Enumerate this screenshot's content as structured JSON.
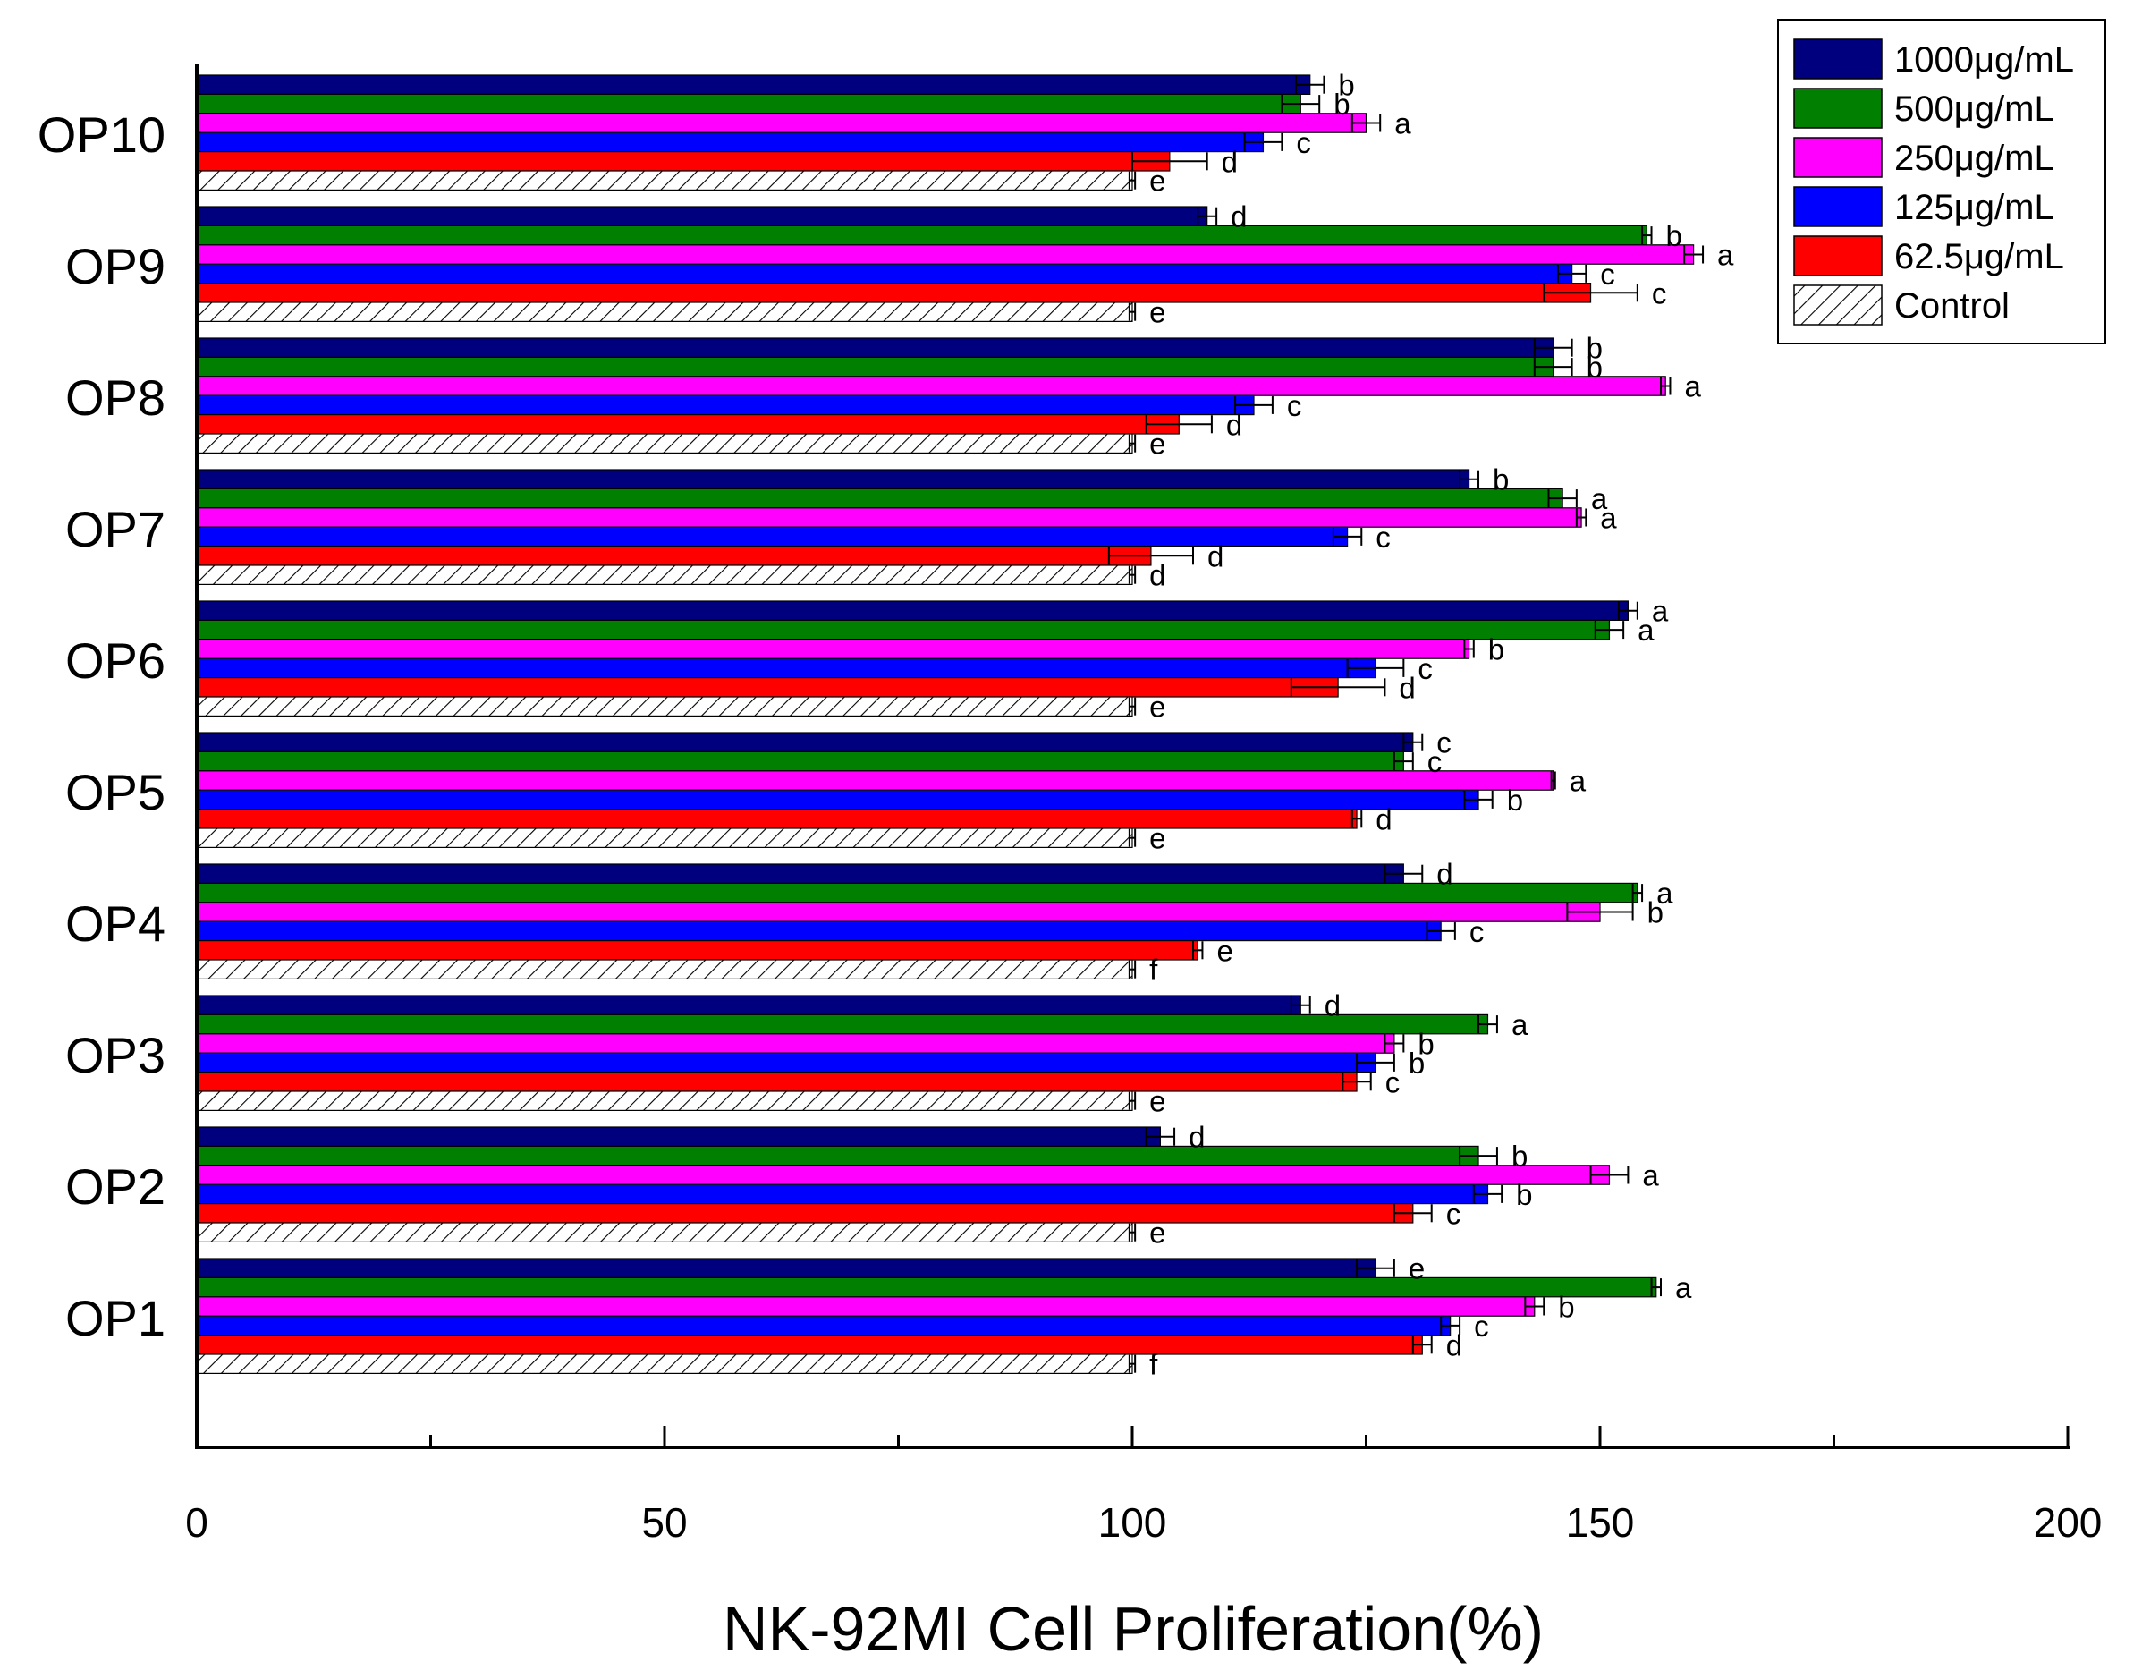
{
  "chart_data": {
    "type": "bar",
    "orientation": "horizontal",
    "xlabel": "NK-92MI Cell Proliferation(%)",
    "ylabel": "",
    "xlim": [
      0,
      200
    ],
    "xticks": [
      0,
      50,
      100,
      150,
      200
    ],
    "x_minor_tick_step": 25,
    "grid": false,
    "legend_position": "top-right",
    "categories": [
      "OP10",
      "OP9",
      "OP8",
      "OP7",
      "OP6",
      "OP5",
      "OP4",
      "OP3",
      "OP2",
      "OP1"
    ],
    "series": [
      {
        "name": "1000μg/mL",
        "color": "#00007f",
        "values": [
          119,
          108,
          145,
          136,
          153,
          130,
          129,
          118,
          103,
          126
        ],
        "errors": [
          1.5,
          1.0,
          2.0,
          1.0,
          1.0,
          1.0,
          2.0,
          1.0,
          1.5,
          2.0
        ],
        "letters": [
          "b",
          "d",
          "b",
          "b",
          "a",
          "c",
          "d",
          "d",
          "d",
          "e"
        ]
      },
      {
        "name": "500μg/mL",
        "color": "#007f00",
        "values": [
          118,
          155,
          145,
          146,
          151,
          129,
          154,
          138,
          137,
          156
        ],
        "errors": [
          2.0,
          0.5,
          2.0,
          1.5,
          1.5,
          1.0,
          0.5,
          1.0,
          2.0,
          0.5
        ],
        "letters": [
          "b",
          "b",
          "b",
          "a",
          "a",
          "c",
          "a",
          "a",
          "b",
          "a"
        ]
      },
      {
        "name": "250μg/mL",
        "color": "#ff00ff",
        "values": [
          125,
          160,
          157,
          148,
          136,
          145,
          150,
          128,
          151,
          143
        ],
        "errors": [
          1.5,
          1.0,
          0.5,
          0.5,
          0.5,
          0.2,
          3.5,
          1.0,
          2.0,
          1.0
        ],
        "letters": [
          "a",
          "a",
          "a",
          "a",
          "b",
          "a",
          "b",
          "b",
          "a",
          "b"
        ]
      },
      {
        "name": "125μg/mL",
        "color": "#0000ff",
        "values": [
          114,
          147,
          113,
          123,
          126,
          137,
          133,
          126,
          138,
          134
        ],
        "errors": [
          2.0,
          1.5,
          2.0,
          1.5,
          3.0,
          1.5,
          1.5,
          2.0,
          1.5,
          1.0
        ],
        "letters": [
          "c",
          "c",
          "c",
          "c",
          "c",
          "b",
          "c",
          "b",
          "b",
          "c"
        ]
      },
      {
        "name": "62.5μg/mL",
        "color": "#ff0000",
        "values": [
          104,
          149,
          105,
          102,
          122,
          124,
          107,
          124,
          130,
          131
        ],
        "errors": [
          4.0,
          5.0,
          3.5,
          4.5,
          5.0,
          0.5,
          0.5,
          1.5,
          2.0,
          1.0
        ],
        "letters": [
          "d",
          "c",
          "d",
          "d",
          "d",
          "d",
          "e",
          "c",
          "c",
          "d"
        ]
      },
      {
        "name": "Control",
        "color": "hatched",
        "values": [
          100,
          100,
          100,
          100,
          100,
          100,
          100,
          100,
          100,
          100
        ],
        "errors": [
          0.3,
          0.3,
          0.3,
          0.3,
          0.3,
          0.3,
          0.3,
          0.3,
          0.3,
          0.3
        ],
        "letters": [
          "e",
          "e",
          "e",
          "d",
          "e",
          "e",
          "f",
          "e",
          "e",
          "f"
        ]
      }
    ]
  }
}
